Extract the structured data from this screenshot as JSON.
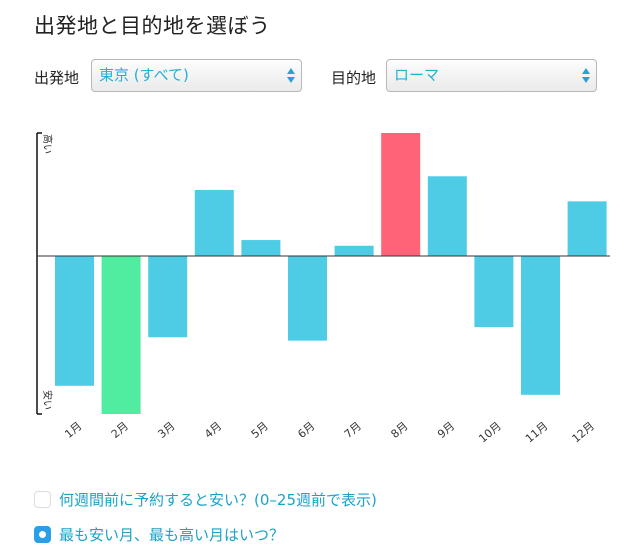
{
  "heading": "出発地と目的地を選ぼう",
  "origin": {
    "label": "出発地",
    "value": "東京 (すべて)"
  },
  "destination": {
    "label": "目的地",
    "value": "ローマ"
  },
  "colors": {
    "normal": "#4ecce6",
    "cheapest": "#50eca0",
    "highest": "#ff6377",
    "accent": "#1aa3c9"
  },
  "chart_data": {
    "type": "bar",
    "categories": [
      "1月",
      "2月",
      "3月",
      "4月",
      "5月",
      "6月",
      "7月",
      "8月",
      "9月",
      "10月",
      "11月",
      "12月"
    ],
    "values": [
      -1.15,
      -1.4,
      -0.72,
      0.58,
      0.14,
      -0.75,
      0.09,
      1.08,
      0.7,
      -0.63,
      -1.23,
      0.48
    ],
    "highlight": {
      "lowest": "2月",
      "highest": "8月"
    },
    "ylabel_top": "高い",
    "ylabel_bottom": "安い",
    "ylim": [
      -1.4,
      1.08
    ]
  },
  "options": [
    {
      "label": "何週間前に予約すると安い？(0–25週前で表示)",
      "selected": false
    },
    {
      "label": "最も安い月、最も高い月はいつ？",
      "selected": true
    }
  ]
}
